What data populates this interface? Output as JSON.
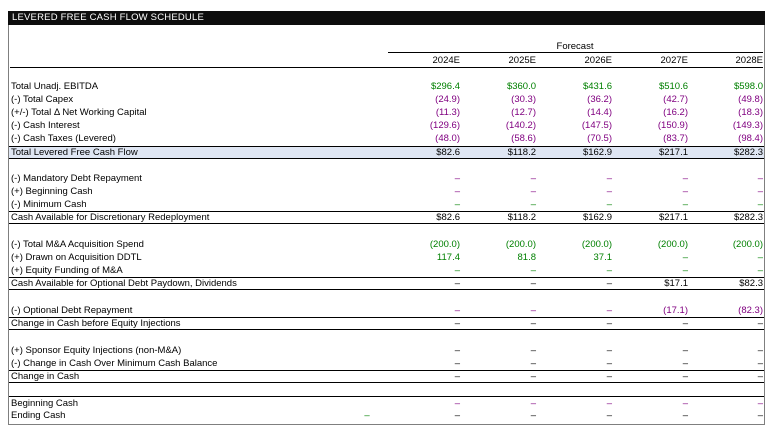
{
  "title": "LEVERED FREE CASH FLOW SCHEDULE",
  "forecast_label": "Forecast",
  "years": [
    "2024E",
    "2025E",
    "2026E",
    "2027E",
    "2028E"
  ],
  "colors": {
    "green": "#008000",
    "purple": "#800080",
    "black": "#000000",
    "band": "#dfe6f3"
  },
  "rows": [
    {
      "label": "Total Unadj. EBITDA",
      "values": [
        "$296.4",
        "$360.0",
        "$431.6",
        "$510.6",
        "$598.0"
      ],
      "color": "green"
    },
    {
      "label": "(-) Total Capex",
      "values": [
        "(24.9)",
        "(30.3)",
        "(36.2)",
        "(42.7)",
        "(49.8)"
      ],
      "color": "purple"
    },
    {
      "label": "(+/-) Total Δ Net Working Capital",
      "values": [
        "(11.3)",
        "(12.7)",
        "(14.4)",
        "(16.2)",
        "(18.3)"
      ],
      "color": "purple"
    },
    {
      "label": "(-) Cash Interest",
      "values": [
        "(129.6)",
        "(140.2)",
        "(147.5)",
        "(150.9)",
        "(149.3)"
      ],
      "color": "purple"
    },
    {
      "label": "(-) Cash Taxes (Levered)",
      "values": [
        "(48.0)",
        "(58.6)",
        "(70.5)",
        "(83.7)",
        "(98.4)"
      ],
      "color": "purple"
    },
    {
      "label": "Total Levered Free Cash Flow",
      "values": [
        "$82.6",
        "$118.2",
        "$162.9",
        "$217.1",
        "$282.3"
      ],
      "color": "black"
    },
    {
      "label": "(-) Mandatory Debt Repayment",
      "values": [
        "–",
        "–",
        "–",
        "–",
        "–"
      ],
      "color": "purple"
    },
    {
      "label": "(+) Beginning Cash",
      "values": [
        "–",
        "–",
        "–",
        "–",
        "–"
      ],
      "color": "purple"
    },
    {
      "label": "(-) Minimum Cash",
      "values": [
        "–",
        "–",
        "–",
        "–",
        "–"
      ],
      "color": "green"
    },
    {
      "label": "Cash Available for Discretionary Redeployment",
      "values": [
        "$82.6",
        "$118.2",
        "$162.9",
        "$217.1",
        "$282.3"
      ],
      "color": "black"
    },
    {
      "label": "(-) Total M&A Acquisition Spend",
      "values": [
        "(200.0)",
        "(200.0)",
        "(200.0)",
        "(200.0)",
        "(200.0)"
      ],
      "color": "green"
    },
    {
      "label": "(+) Drawn on Acquisition DDTL",
      "values": [
        "117.4",
        "81.8",
        "37.1",
        "–",
        "–"
      ],
      "color": "green"
    },
    {
      "label": "(+) Equity Funding of M&A",
      "values": [
        "–",
        "–",
        "–",
        "–",
        "–"
      ],
      "color": "green"
    },
    {
      "label": "Cash Available for Optional Debt Paydown, Dividends",
      "values": [
        "–",
        "–",
        "–",
        "$17.1",
        "$82.3"
      ],
      "color": "black"
    },
    {
      "label": "(-) Optional Debt Repayment",
      "values": [
        "–",
        "–",
        "–",
        "(17.1)",
        "(82.3)"
      ],
      "color": "purple"
    },
    {
      "label": "Change in Cash before Equity Injections",
      "values": [
        "–",
        "–",
        "–",
        "–",
        "–"
      ],
      "color": "black"
    },
    {
      "label": "(+) Sponsor Equity Injections (non-M&A)",
      "values": [
        "–",
        "–",
        "–",
        "–",
        "–"
      ],
      "color": "black"
    },
    {
      "label": "(-) Change in Cash Over Minimum Cash Balance",
      "values": [
        "–",
        "–",
        "–",
        "–",
        "–"
      ],
      "color": "black"
    },
    {
      "label": "Change in Cash",
      "values": [
        "–",
        "–",
        "–",
        "–",
        "–"
      ],
      "color": "black"
    },
    {
      "label": "Beginning Cash",
      "values": [
        "–",
        "–",
        "–",
        "–",
        "–"
      ],
      "color": "purple"
    },
    {
      "label": "Ending Cash",
      "values": [
        "–",
        "–",
        "–",
        "–",
        "–"
      ],
      "color": "black",
      "extra": "–"
    }
  ]
}
